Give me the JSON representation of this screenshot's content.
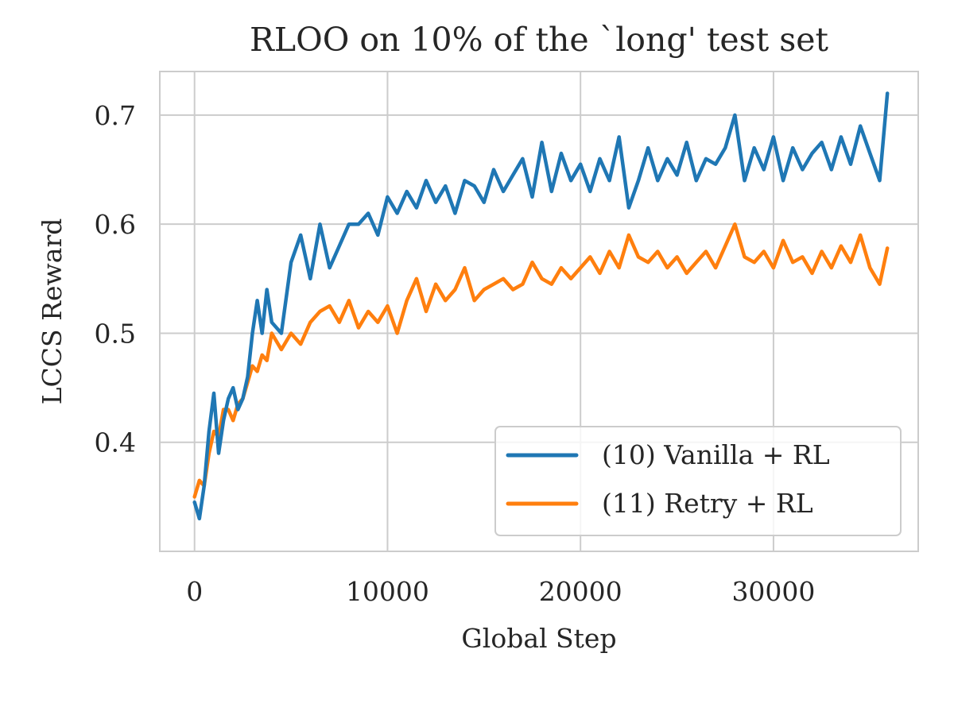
{
  "chart_data": {
    "type": "line",
    "title": "RLOO on 10% of the `long' test set",
    "xlabel": "Global Step",
    "ylabel": "LCCS Reward",
    "xlim": [
      -1800,
      37500
    ],
    "ylim": [
      0.3,
      0.74
    ],
    "xticks": [
      0,
      10000,
      20000,
      30000
    ],
    "xtick_labels": [
      "0",
      "10000",
      "20000",
      "30000"
    ],
    "yticks": [
      0.4,
      0.5,
      0.6,
      0.7
    ],
    "ytick_labels": [
      "0.4",
      "0.5",
      "0.6",
      "0.7"
    ],
    "grid": true,
    "legend_position": "lower-right",
    "series": [
      {
        "name": "(10) Vanilla + RL",
        "color": "#1f77b4",
        "x": [
          0,
          250,
          500,
          750,
          1000,
          1250,
          1500,
          1750,
          2000,
          2250,
          2500,
          2750,
          3000,
          3250,
          3500,
          3750,
          4000,
          4500,
          5000,
          5500,
          6000,
          6500,
          7000,
          7500,
          8000,
          8500,
          9000,
          9500,
          10000,
          10500,
          11000,
          11500,
          12000,
          12500,
          13000,
          13500,
          14000,
          14500,
          15000,
          15500,
          16000,
          16500,
          17000,
          17500,
          18000,
          18500,
          19000,
          19500,
          20000,
          20500,
          21000,
          21500,
          22000,
          22500,
          23000,
          23500,
          24000,
          24500,
          25000,
          25500,
          26000,
          26500,
          27000,
          27500,
          28000,
          28500,
          29000,
          29500,
          30000,
          30500,
          31000,
          31500,
          32000,
          32500,
          33000,
          33500,
          34000,
          34500,
          35000,
          35500,
          35900
        ],
        "values": [
          0.345,
          0.33,
          0.36,
          0.41,
          0.445,
          0.39,
          0.42,
          0.44,
          0.45,
          0.43,
          0.44,
          0.46,
          0.5,
          0.53,
          0.5,
          0.54,
          0.51,
          0.5,
          0.565,
          0.59,
          0.55,
          0.6,
          0.56,
          0.58,
          0.6,
          0.6,
          0.61,
          0.59,
          0.625,
          0.61,
          0.63,
          0.615,
          0.64,
          0.62,
          0.635,
          0.61,
          0.64,
          0.635,
          0.62,
          0.65,
          0.63,
          0.645,
          0.66,
          0.625,
          0.675,
          0.63,
          0.665,
          0.64,
          0.655,
          0.63,
          0.66,
          0.64,
          0.68,
          0.615,
          0.64,
          0.67,
          0.64,
          0.66,
          0.645,
          0.675,
          0.64,
          0.66,
          0.655,
          0.67,
          0.7,
          0.64,
          0.67,
          0.65,
          0.68,
          0.64,
          0.67,
          0.65,
          0.665,
          0.675,
          0.65,
          0.68,
          0.655,
          0.69,
          0.665,
          0.64,
          0.72
        ]
      },
      {
        "name": "(11) Retry + RL",
        "color": "#ff7f0e",
        "x": [
          0,
          250,
          500,
          750,
          1000,
          1250,
          1500,
          1750,
          2000,
          2250,
          2500,
          2750,
          3000,
          3250,
          3500,
          3750,
          4000,
          4500,
          5000,
          5500,
          6000,
          6500,
          7000,
          7500,
          8000,
          8500,
          9000,
          9500,
          10000,
          10500,
          11000,
          11500,
          12000,
          12500,
          13000,
          13500,
          14000,
          14500,
          15000,
          15500,
          16000,
          16500,
          17000,
          17500,
          18000,
          18500,
          19000,
          19500,
          20000,
          20500,
          21000,
          21500,
          22000,
          22500,
          23000,
          23500,
          24000,
          24500,
          25000,
          25500,
          26000,
          26500,
          27000,
          27500,
          28000,
          28500,
          29000,
          29500,
          30000,
          30500,
          31000,
          31500,
          32000,
          32500,
          33000,
          33500,
          34000,
          34500,
          35000,
          35500,
          35900
        ],
        "values": [
          0.35,
          0.365,
          0.36,
          0.39,
          0.41,
          0.405,
          0.43,
          0.43,
          0.42,
          0.435,
          0.44,
          0.455,
          0.47,
          0.465,
          0.48,
          0.475,
          0.5,
          0.485,
          0.5,
          0.49,
          0.51,
          0.52,
          0.525,
          0.51,
          0.53,
          0.505,
          0.52,
          0.51,
          0.525,
          0.5,
          0.53,
          0.55,
          0.52,
          0.545,
          0.53,
          0.54,
          0.56,
          0.53,
          0.54,
          0.545,
          0.55,
          0.54,
          0.545,
          0.565,
          0.55,
          0.545,
          0.56,
          0.55,
          0.56,
          0.57,
          0.555,
          0.575,
          0.56,
          0.59,
          0.57,
          0.565,
          0.575,
          0.56,
          0.57,
          0.555,
          0.565,
          0.575,
          0.56,
          0.58,
          0.6,
          0.57,
          0.565,
          0.575,
          0.56,
          0.585,
          0.565,
          0.57,
          0.555,
          0.575,
          0.56,
          0.58,
          0.565,
          0.59,
          0.56,
          0.545,
          0.578
        ]
      }
    ]
  }
}
